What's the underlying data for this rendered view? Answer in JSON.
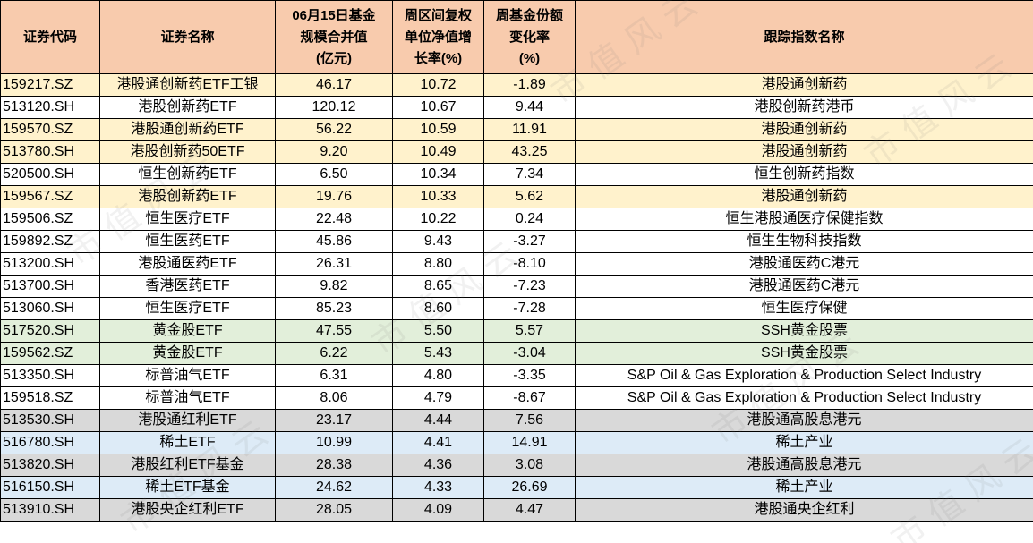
{
  "headers": {
    "code": "证券代码",
    "name": "证券名称",
    "scale_l1": "06月15日基金",
    "scale_l2": "规模合并值",
    "scale_l3": "(亿元)",
    "growth_l1": "周区间复权",
    "growth_l2": "单位净值增",
    "growth_l3": "长率(%)",
    "share_l1": "周基金份额",
    "share_l2": "变化率",
    "share_l3": "(%)",
    "index": "跟踪指数名称"
  },
  "watermark": "市值风云",
  "rows": [
    {
      "code": "159217.SZ",
      "name": "港股通创新药ETF工银",
      "scale": "46.17",
      "growth": "10.72",
      "share": "-1.89",
      "index": "港股通创新药",
      "tint": "orange"
    },
    {
      "code": "513120.SH",
      "name": "港股创新药ETF",
      "scale": "120.12",
      "growth": "10.67",
      "share": "9.44",
      "index": "港股创新药港币",
      "tint": "white"
    },
    {
      "code": "159570.SZ",
      "name": "港股通创新药ETF",
      "scale": "56.22",
      "growth": "10.59",
      "share": "11.91",
      "index": "港股通创新药",
      "tint": "orange"
    },
    {
      "code": "513780.SH",
      "name": "港股创新药50ETF",
      "scale": "9.20",
      "growth": "10.49",
      "share": "43.25",
      "index": "港股通创新药",
      "tint": "orange"
    },
    {
      "code": "520500.SH",
      "name": "恒生创新药ETF",
      "scale": "6.50",
      "growth": "10.34",
      "share": "7.34",
      "index": "恒生创新药指数",
      "tint": "white"
    },
    {
      "code": "159567.SZ",
      "name": "港股创新药ETF",
      "scale": "19.76",
      "growth": "10.33",
      "share": "5.62",
      "index": "港股通创新药",
      "tint": "orange"
    },
    {
      "code": "159506.SZ",
      "name": "恒生医疗ETF",
      "scale": "22.48",
      "growth": "10.22",
      "share": "0.24",
      "index": "恒生港股通医疗保健指数",
      "tint": "white"
    },
    {
      "code": "159892.SZ",
      "name": "恒生医药ETF",
      "scale": "45.86",
      "growth": "9.43",
      "share": "-3.27",
      "index": "恒生生物科技指数",
      "tint": "white"
    },
    {
      "code": "513200.SH",
      "name": "港股通医药ETF",
      "scale": "26.31",
      "growth": "8.80",
      "share": "-8.10",
      "index": "港股通医药C港元",
      "tint": "white"
    },
    {
      "code": "513700.SH",
      "name": "香港医药ETF",
      "scale": "9.82",
      "growth": "8.65",
      "share": "-7.23",
      "index": "港股通医药C港元",
      "tint": "white"
    },
    {
      "code": "513060.SH",
      "name": "恒生医疗ETF",
      "scale": "85.23",
      "growth": "8.60",
      "share": "-7.28",
      "index": "恒生医疗保健",
      "tint": "white"
    },
    {
      "code": "517520.SH",
      "name": "黄金股ETF",
      "scale": "47.55",
      "growth": "5.50",
      "share": "5.57",
      "index": "SSH黄金股票",
      "tint": "green"
    },
    {
      "code": "159562.SZ",
      "name": "黄金股ETF",
      "scale": "6.22",
      "growth": "5.43",
      "share": "-3.04",
      "index": "SSH黄金股票",
      "tint": "green"
    },
    {
      "code": "513350.SH",
      "name": "标普油气ETF",
      "scale": "6.31",
      "growth": "4.80",
      "share": "-3.35",
      "index": "S&P Oil & Gas Exploration & Production Select Industry",
      "tint": "white"
    },
    {
      "code": "159518.SZ",
      "name": "标普油气ETF",
      "scale": "8.06",
      "growth": "4.79",
      "share": "-8.67",
      "index": "S&P Oil & Gas Exploration & Production Select Industry",
      "tint": "white"
    },
    {
      "code": "513530.SH",
      "name": "港股通红利ETF",
      "scale": "23.17",
      "growth": "4.44",
      "share": "7.56",
      "index": "港股通高股息港元",
      "tint": "gray"
    },
    {
      "code": "516780.SH",
      "name": "稀土ETF",
      "scale": "10.99",
      "growth": "4.41",
      "share": "14.91",
      "index": "稀土产业",
      "tint": "blue"
    },
    {
      "code": "513820.SH",
      "name": "港股红利ETF基金",
      "scale": "28.38",
      "growth": "4.36",
      "share": "3.08",
      "index": "港股通高股息港元",
      "tint": "gray"
    },
    {
      "code": "516150.SH",
      "name": "稀土ETF基金",
      "scale": "24.62",
      "growth": "4.33",
      "share": "26.69",
      "index": "稀土产业",
      "tint": "blue"
    },
    {
      "code": "513910.SH",
      "name": "港股央企红利ETF",
      "scale": "28.05",
      "growth": "4.09",
      "share": "4.47",
      "index": "港股通央企红利",
      "tint": "gray"
    }
  ]
}
